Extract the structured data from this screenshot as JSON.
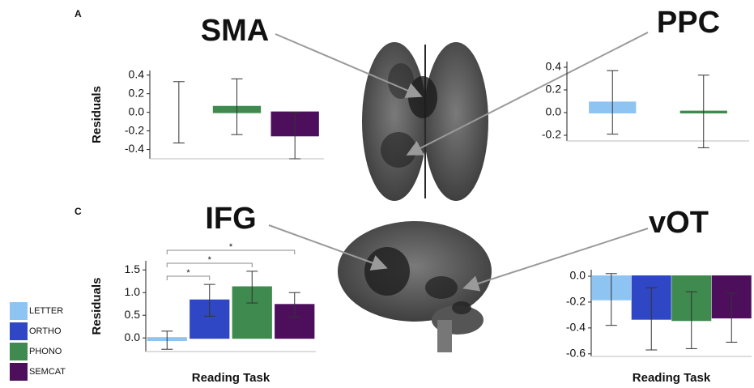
{
  "panel_labels": [
    "A",
    "C"
  ],
  "legend": {
    "labels": [
      "LETTER",
      "ORTHO",
      "PHONO",
      "SEMCAT"
    ],
    "colors": [
      "#8ec4f2",
      "#2f47c4",
      "#3f8a4f",
      "#4d0f5c"
    ]
  },
  "chart_data": [
    {
      "type": "bar",
      "title": "SMA",
      "y_label": "Residuals",
      "categories": [
        null,
        null,
        null
      ],
      "values": [
        0.0,
        0.06,
        -0.25
      ],
      "errors": [
        0.33,
        0.3,
        0.25
      ],
      "colors": [
        "#2f47c4",
        "#3f8a4f",
        "#4d0f5c"
      ],
      "ylim": [
        -0.5,
        0.45
      ],
      "yticks": [
        {
          "value": -0.4,
          "label": "-0.4"
        },
        -0.2,
        {
          "value": 0,
          "label": "0.0"
        },
        0.2,
        0.4
      ]
    },
    {
      "type": "bar",
      "title": "PPC",
      "categories": [
        null,
        null
      ],
      "values": [
        0.09,
        0.01
      ],
      "errors": [
        0.28,
        0.32
      ],
      "colors": [
        "#8ec4f2",
        "#3f8a4f"
      ],
      "ylim": [
        -0.25,
        0.45
      ],
      "yticks": [
        -0.2,
        {
          "value": 0,
          "label": "0.0"
        },
        0.2,
        0.4
      ]
    },
    {
      "type": "bar",
      "title": "IFG",
      "y_label": "Residuals",
      "x_label": "Reading Task",
      "categories": [
        null,
        null,
        null,
        null
      ],
      "values": [
        -0.05,
        0.83,
        1.12,
        0.73
      ],
      "errors": [
        0.2,
        0.35,
        0.35,
        0.27
      ],
      "colors": [
        "#8ec4f2",
        "#2f47c4",
        "#3f8a4f",
        "#4d0f5c"
      ],
      "ylim": [
        -0.3,
        1.7
      ],
      "yticks": [
        {
          "value": 0,
          "label": "0.0"
        },
        0.5,
        {
          "value": 1,
          "label": "1.0"
        },
        1.5
      ],
      "comparisons": [
        {
          "pair": [
            0,
            1
          ],
          "label": "*"
        },
        {
          "pair": [
            0,
            2
          ],
          "label": "*"
        },
        {
          "pair": [
            0,
            3
          ],
          "label": "*"
        }
      ]
    },
    {
      "type": "bar",
      "title": "vOT",
      "x_label": "Reading Task",
      "categories": [
        null,
        null,
        null,
        null
      ],
      "values": [
        -0.18,
        -0.33,
        -0.34,
        -0.32
      ],
      "errors": [
        0.2,
        0.24,
        0.22,
        0.19
      ],
      "colors": [
        "#8ec4f2",
        "#2f47c4",
        "#3f8a4f",
        "#4d0f5c"
      ],
      "ylim": [
        -0.62,
        0.05
      ],
      "yticks": [
        -0.6,
        -0.4,
        -0.2,
        {
          "value": 0,
          "label": "0.0"
        }
      ]
    }
  ]
}
